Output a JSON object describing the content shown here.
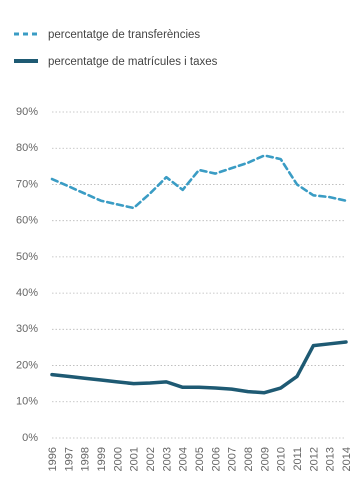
{
  "chart_data": {
    "type": "line",
    "x": [
      "1996",
      "1997",
      "1998",
      "1999",
      "2000",
      "2001",
      "2002",
      "2003",
      "2004",
      "2005",
      "2006",
      "2007",
      "2008",
      "2009",
      "2010",
      "2011",
      "2012",
      "2013",
      "2014"
    ],
    "series": [
      {
        "name": "percentatge de transferències",
        "style": "dashed",
        "color": "#3a9cc4",
        "values": [
          71.5,
          69.5,
          67.5,
          65.5,
          64.5,
          63.5,
          67.5,
          72,
          68.5,
          74,
          73,
          74.5,
          76,
          78,
          77,
          70,
          67,
          66.5,
          65.5
        ]
      },
      {
        "name": "percentatge de matrícules i taxes",
        "style": "solid",
        "color": "#1e5a73",
        "values": [
          17.5,
          17,
          16.5,
          16,
          15.5,
          15,
          15.2,
          15.5,
          14,
          14,
          13.8,
          13.5,
          12.8,
          12.5,
          13.8,
          17,
          25.5,
          26,
          26.5
        ]
      }
    ],
    "y_ticks": [
      "0%",
      "10%",
      "20%",
      "30%",
      "40%",
      "50%",
      "60%",
      "70%",
      "80%",
      "90%"
    ],
    "ylim": [
      0,
      90
    ],
    "grid": true,
    "legend_position": "top-left"
  }
}
